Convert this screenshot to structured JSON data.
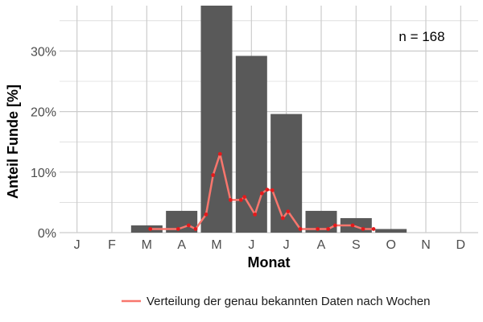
{
  "chart_data": {
    "type": "bar",
    "categories": [
      "J",
      "F",
      "M",
      "A",
      "M",
      "J",
      "J",
      "A",
      "S",
      "O",
      "N",
      "D"
    ],
    "values": [
      0,
      0,
      1.2,
      3.6,
      37.5,
      29.2,
      19.6,
      3.6,
      2.4,
      0.6,
      0,
      0
    ],
    "xlabel": "Monat",
    "ylabel": "Anteil Funde [%]",
    "ylim": [
      0,
      37.5
    ],
    "yticks": [
      0,
      10,
      20,
      30
    ],
    "ytick_labels": [
      "0%",
      "10%",
      "20%",
      "30%"
    ],
    "grid": true,
    "bar_color": "#595959",
    "annotation": "n = 168",
    "series": [
      {
        "name": "Verteilung der genau bekannten Daten nach Wochen",
        "type": "line",
        "color": "#f8766d",
        "marker_color": "#e41a1c",
        "x": [
          3.1,
          3.9,
          4.2,
          4.4,
          4.7,
          4.9,
          5.1,
          5.4,
          5.7,
          5.8,
          6.1,
          6.3,
          6.45,
          6.6,
          6.9,
          7.05,
          7.4,
          7.9,
          8.2,
          8.4,
          8.9,
          9.2,
          9.5
        ],
        "values": [
          0.6,
          0.6,
          1.2,
          0.6,
          3.0,
          9.5,
          13.0,
          5.4,
          5.4,
          5.9,
          3.0,
          6.5,
          7.1,
          7.0,
          2.4,
          3.5,
          0.6,
          0.6,
          0.6,
          1.2,
          1.2,
          0.6,
          0.6
        ]
      }
    ],
    "legend": {
      "position": "bottom",
      "label": "Verteilung der genau bekannten Daten nach Wochen"
    }
  }
}
